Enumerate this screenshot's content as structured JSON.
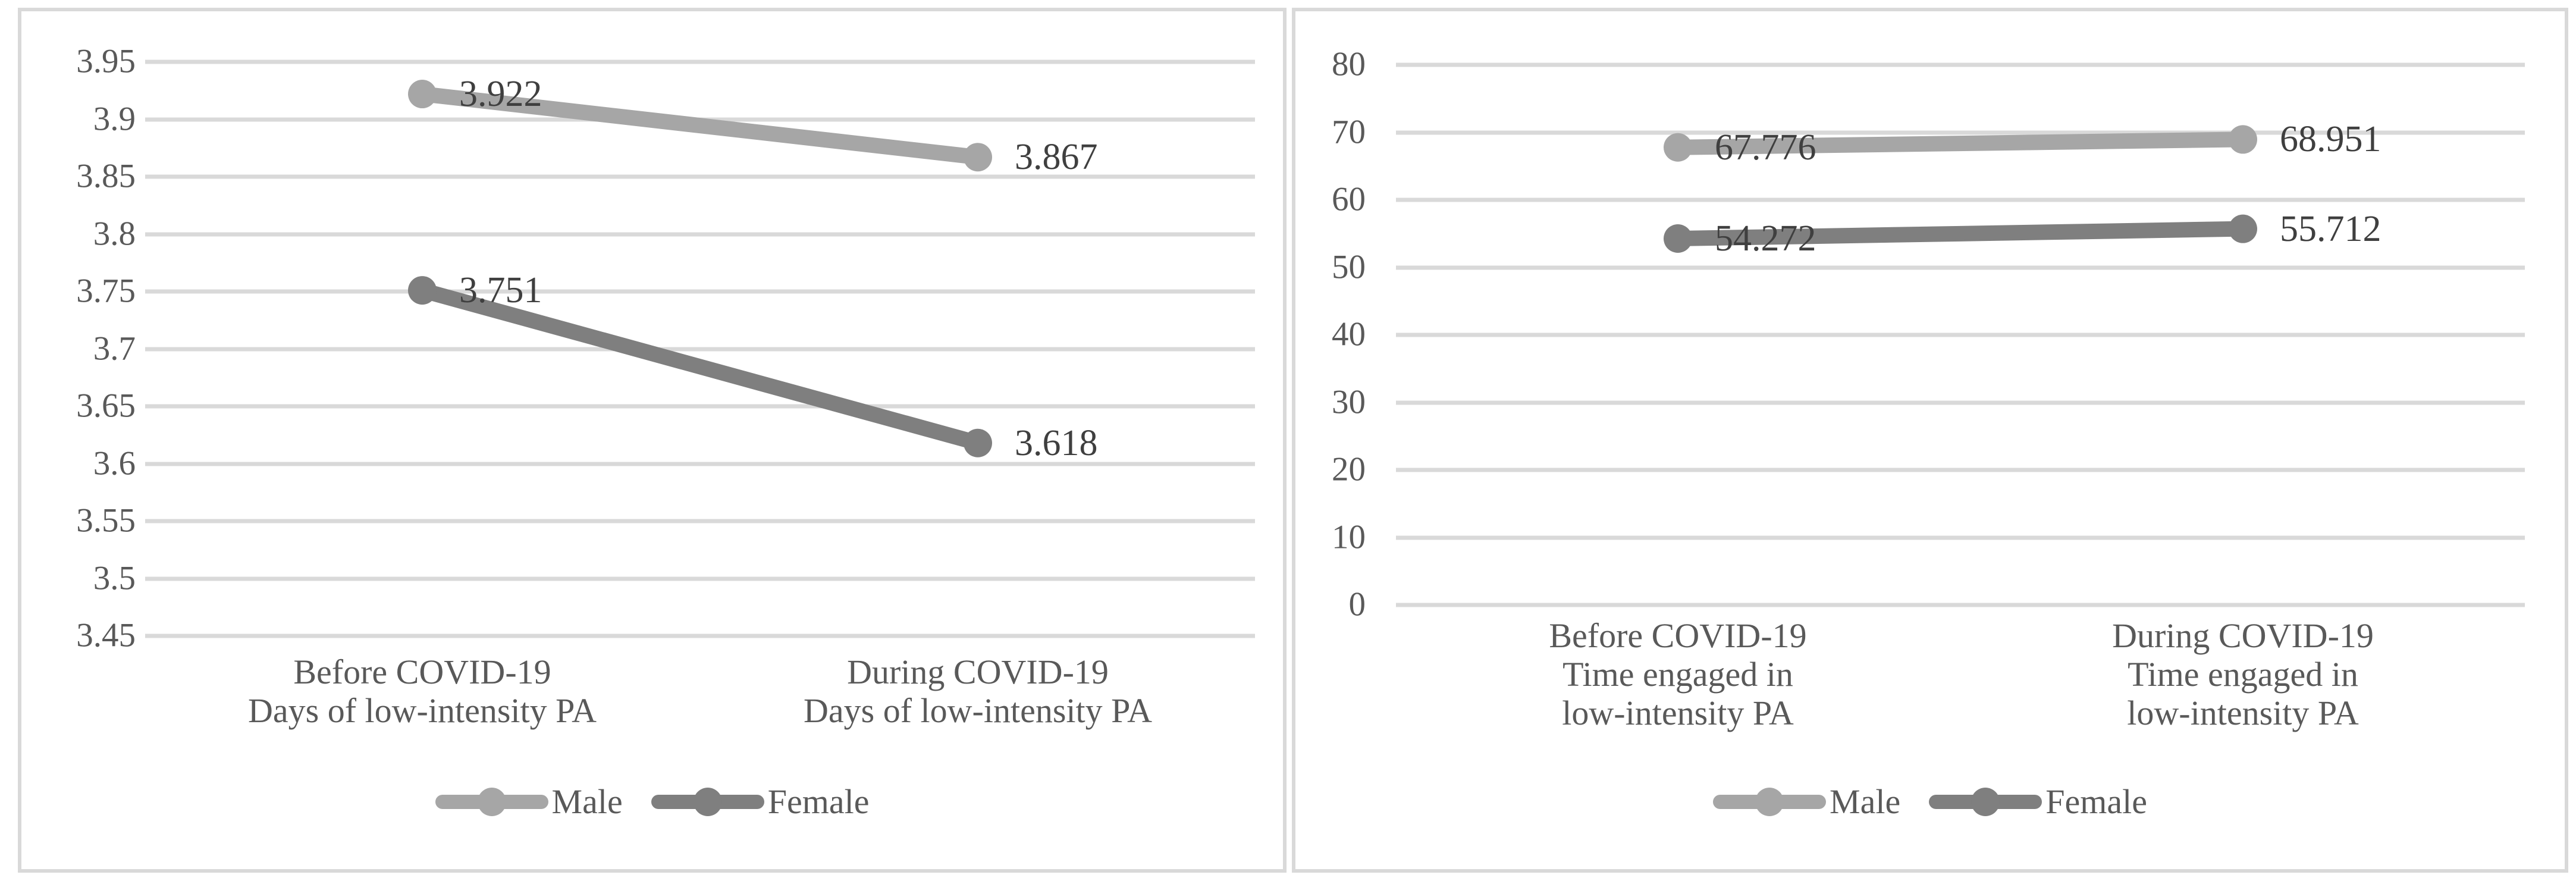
{
  "chart_data": [
    {
      "type": "line",
      "panel": "left",
      "title": "",
      "xlabel": "",
      "ylabel": "",
      "grid": true,
      "legend_position": "bottom",
      "y_axis": {
        "min": 3.45,
        "max": 3.95,
        "tick_step": 0.05,
        "ticks": [
          "3.95",
          "3.9",
          "3.85",
          "3.8",
          "3.75",
          "3.7",
          "3.65",
          "3.6",
          "3.55",
          "3.5",
          "3.45"
        ]
      },
      "categories": [
        [
          "Before COVID-19",
          "Days of low-intensity PA"
        ],
        [
          "During COVID-19",
          "Days of low-intensity PA"
        ]
      ],
      "series": [
        {
          "name": "Male",
          "color": "#a6a6a6",
          "values": [
            3.922,
            3.867
          ],
          "data_labels": [
            "3.922",
            "3.867"
          ]
        },
        {
          "name": "Female",
          "color": "#7f7f7f",
          "values": [
            3.751,
            3.618
          ],
          "data_labels": [
            "3.751",
            "3.618"
          ]
        }
      ]
    },
    {
      "type": "line",
      "panel": "right",
      "title": "",
      "xlabel": "",
      "ylabel": "",
      "grid": true,
      "legend_position": "bottom",
      "y_axis": {
        "min": 0,
        "max": 80,
        "tick_step": 10,
        "ticks": [
          "80",
          "70",
          "60",
          "50",
          "40",
          "30",
          "20",
          "10",
          "0"
        ]
      },
      "categories": [
        [
          "Before COVID-19",
          "Time engaged in",
          "low-intensity PA"
        ],
        [
          "During COVID-19",
          "Time engaged in",
          "low-intensity PA"
        ]
      ],
      "series": [
        {
          "name": "Male",
          "color": "#a6a6a6",
          "values": [
            67.776,
            68.951
          ],
          "data_labels": [
            "67.776",
            "68.951"
          ]
        },
        {
          "name": "Female",
          "color": "#7f7f7f",
          "values": [
            54.272,
            55.712
          ],
          "data_labels": [
            "54.272",
            "55.712"
          ]
        }
      ]
    }
  ],
  "colors": {
    "male_series": "#a6a6a6",
    "female_series": "#7f7f7f",
    "gridline": "#d9d9d9",
    "panel_border": "#d9d9d9",
    "axis_text": "#595959",
    "data_label_text": "#3f3f3f"
  }
}
